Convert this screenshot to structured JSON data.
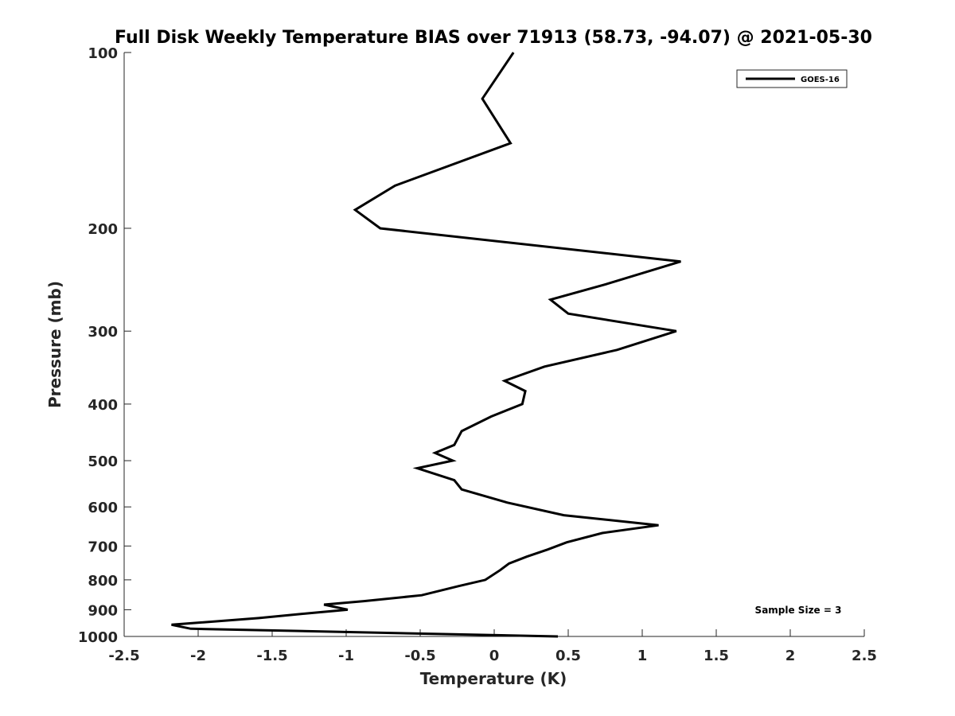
{
  "chart_data": {
    "type": "line",
    "title": "Full Disk Weekly Temperature BIAS over 71913 (58.73, -94.07) @ 2021-05-30",
    "xlabel": "Temperature (K)",
    "ylabel": "Pressure (mb)",
    "xlim": [
      -2.5,
      2.5
    ],
    "ylim": [
      1000,
      100
    ],
    "yscale": "log",
    "y_reversed": true,
    "xticks": [
      "-2.5",
      "-2",
      "-1.5",
      "-1",
      "-0.5",
      "0",
      "0.5",
      "1",
      "1.5",
      "2",
      "2.5"
    ],
    "yticks": [
      "100",
      "200",
      "300",
      "400",
      "500",
      "600",
      "700",
      "800",
      "900",
      "1000"
    ],
    "grid": false,
    "legend_position": "top-right",
    "annotation": "Sample Size = 3",
    "series": [
      {
        "name": "GOES-16",
        "color": "#000000",
        "points": [
          [
            0.13,
            100
          ],
          [
            -0.08,
            120
          ],
          [
            0.11,
            143
          ],
          [
            -0.67,
            169
          ],
          [
            -0.94,
            186
          ],
          [
            -0.77,
            200
          ],
          [
            1.26,
            228
          ],
          [
            0.74,
            250
          ],
          [
            0.38,
            265
          ],
          [
            0.5,
            280
          ],
          [
            1.23,
            300
          ],
          [
            0.83,
            323
          ],
          [
            0.34,
            345
          ],
          [
            0.07,
            365
          ],
          [
            0.21,
            380
          ],
          [
            0.19,
            400
          ],
          [
            -0.02,
            420
          ],
          [
            -0.22,
            445
          ],
          [
            -0.27,
            470
          ],
          [
            -0.4,
            485
          ],
          [
            -0.28,
            500
          ],
          [
            -0.52,
            515
          ],
          [
            -0.27,
            540
          ],
          [
            -0.22,
            560
          ],
          [
            0.09,
            590
          ],
          [
            0.47,
            620
          ],
          [
            1.11,
            645
          ],
          [
            0.73,
            665
          ],
          [
            0.49,
            690
          ],
          [
            0.36,
            710
          ],
          [
            0.22,
            730
          ],
          [
            0.1,
            750
          ],
          [
            0.04,
            770
          ],
          [
            -0.06,
            800
          ],
          [
            -0.24,
            820
          ],
          [
            -0.49,
            850
          ],
          [
            -0.88,
            870
          ],
          [
            -1.15,
            882
          ],
          [
            -0.99,
            900
          ],
          [
            -1.24,
            912
          ],
          [
            -1.59,
            930
          ],
          [
            -2.18,
            955
          ],
          [
            -2.05,
            970
          ],
          [
            0.43,
            1000
          ]
        ]
      }
    ]
  }
}
